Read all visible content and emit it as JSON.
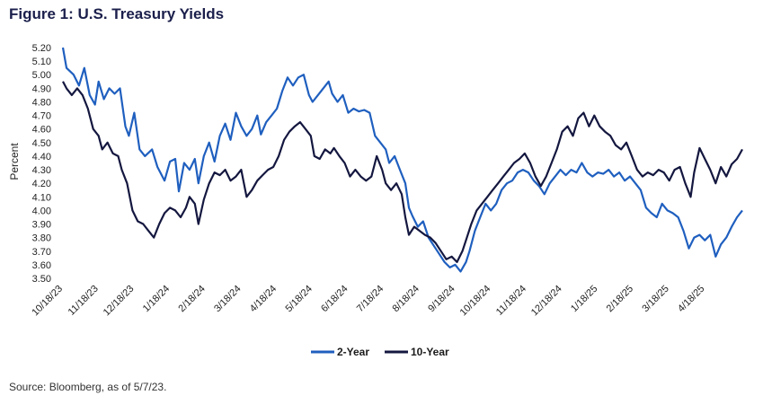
{
  "title": "Figure 1: U.S. Treasury Yields",
  "source": "Source: Bloomberg, as of 5/7/23.",
  "chart_data": {
    "type": "line",
    "ylabel": "Percent",
    "ylim": [
      3.5,
      5.2
    ],
    "yticks": [
      "5.20",
      "5.10",
      "5.00",
      "4.90",
      "4.80",
      "4.70",
      "4.60",
      "4.50",
      "4.40",
      "4.30",
      "4.20",
      "4.10",
      "4.00",
      "3.90",
      "3.80",
      "3.70",
      "3.60",
      "3.50"
    ],
    "xticks": [
      "10/18/23",
      "11/18/23",
      "12/18/23",
      "1/18/24",
      "2/18/24",
      "3/18/24",
      "4/18/24",
      "5/18/24",
      "6/18/24",
      "7/18/24",
      "8/18/24",
      "9/18/24",
      "10/18/24",
      "11/18/24",
      "12/18/24",
      "1/18/25",
      "2/18/25",
      "3/18/25",
      "4/18/25"
    ],
    "x_month_offsets": [
      0,
      1,
      2,
      3,
      4,
      5,
      6,
      7,
      8,
      9,
      10,
      11,
      12,
      13,
      14,
      15,
      16,
      17,
      18
    ],
    "x_end_month": 19.1,
    "legend_position": "bottom",
    "series": [
      {
        "name": "2-Year",
        "color": "#1f5fbf",
        "values": [
          [
            0.0,
            5.2
          ],
          [
            0.1,
            5.05
          ],
          [
            0.3,
            5.0
          ],
          [
            0.45,
            4.92
          ],
          [
            0.6,
            5.05
          ],
          [
            0.75,
            4.85
          ],
          [
            0.9,
            4.78
          ],
          [
            1.0,
            4.95
          ],
          [
            1.15,
            4.82
          ],
          [
            1.3,
            4.9
          ],
          [
            1.45,
            4.86
          ],
          [
            1.6,
            4.9
          ],
          [
            1.75,
            4.62
          ],
          [
            1.85,
            4.55
          ],
          [
            2.0,
            4.72
          ],
          [
            2.15,
            4.45
          ],
          [
            2.3,
            4.4
          ],
          [
            2.5,
            4.45
          ],
          [
            2.65,
            4.32
          ],
          [
            2.85,
            4.22
          ],
          [
            3.0,
            4.36
          ],
          [
            3.15,
            4.38
          ],
          [
            3.25,
            4.14
          ],
          [
            3.4,
            4.35
          ],
          [
            3.55,
            4.3
          ],
          [
            3.7,
            4.38
          ],
          [
            3.8,
            4.2
          ],
          [
            3.95,
            4.4
          ],
          [
            4.1,
            4.5
          ],
          [
            4.25,
            4.36
          ],
          [
            4.4,
            4.55
          ],
          [
            4.55,
            4.64
          ],
          [
            4.7,
            4.52
          ],
          [
            4.85,
            4.72
          ],
          [
            5.0,
            4.62
          ],
          [
            5.15,
            4.55
          ],
          [
            5.3,
            4.6
          ],
          [
            5.45,
            4.7
          ],
          [
            5.55,
            4.56
          ],
          [
            5.7,
            4.65
          ],
          [
            5.85,
            4.7
          ],
          [
            6.0,
            4.75
          ],
          [
            6.15,
            4.88
          ],
          [
            6.3,
            4.98
          ],
          [
            6.45,
            4.92
          ],
          [
            6.6,
            4.98
          ],
          [
            6.75,
            5.0
          ],
          [
            6.9,
            4.85
          ],
          [
            7.0,
            4.8
          ],
          [
            7.15,
            4.85
          ],
          [
            7.3,
            4.9
          ],
          [
            7.45,
            4.95
          ],
          [
            7.55,
            4.86
          ],
          [
            7.7,
            4.8
          ],
          [
            7.85,
            4.85
          ],
          [
            8.0,
            4.72
          ],
          [
            8.15,
            4.75
          ],
          [
            8.3,
            4.73
          ],
          [
            8.45,
            4.74
          ],
          [
            8.6,
            4.72
          ],
          [
            8.75,
            4.55
          ],
          [
            8.9,
            4.5
          ],
          [
            9.05,
            4.45
          ],
          [
            9.15,
            4.35
          ],
          [
            9.3,
            4.4
          ],
          [
            9.45,
            4.3
          ],
          [
            9.6,
            4.2
          ],
          [
            9.7,
            4.02
          ],
          [
            9.8,
            3.96
          ],
          [
            9.95,
            3.88
          ],
          [
            10.1,
            3.92
          ],
          [
            10.25,
            3.8
          ],
          [
            10.4,
            3.74
          ],
          [
            10.55,
            3.68
          ],
          [
            10.7,
            3.62
          ],
          [
            10.85,
            3.58
          ],
          [
            11.0,
            3.6
          ],
          [
            11.15,
            3.55
          ],
          [
            11.3,
            3.62
          ],
          [
            11.4,
            3.7
          ],
          [
            11.55,
            3.85
          ],
          [
            11.7,
            3.95
          ],
          [
            11.85,
            4.05
          ],
          [
            12.0,
            4.0
          ],
          [
            12.15,
            4.05
          ],
          [
            12.3,
            4.15
          ],
          [
            12.45,
            4.2
          ],
          [
            12.6,
            4.22
          ],
          [
            12.75,
            4.28
          ],
          [
            12.9,
            4.3
          ],
          [
            13.05,
            4.28
          ],
          [
            13.2,
            4.22
          ],
          [
            13.35,
            4.18
          ],
          [
            13.5,
            4.12
          ],
          [
            13.65,
            4.2
          ],
          [
            13.8,
            4.25
          ],
          [
            13.95,
            4.3
          ],
          [
            14.1,
            4.26
          ],
          [
            14.25,
            4.3
          ],
          [
            14.4,
            4.28
          ],
          [
            14.55,
            4.35
          ],
          [
            14.7,
            4.28
          ],
          [
            14.85,
            4.25
          ],
          [
            15.0,
            4.28
          ],
          [
            15.15,
            4.27
          ],
          [
            15.3,
            4.3
          ],
          [
            15.45,
            4.25
          ],
          [
            15.6,
            4.28
          ],
          [
            15.75,
            4.22
          ],
          [
            15.9,
            4.25
          ],
          [
            16.05,
            4.2
          ],
          [
            16.2,
            4.15
          ],
          [
            16.35,
            4.02
          ],
          [
            16.5,
            3.98
          ],
          [
            16.65,
            3.95
          ],
          [
            16.8,
            4.05
          ],
          [
            16.95,
            4.0
          ],
          [
            17.1,
            3.98
          ],
          [
            17.25,
            3.95
          ],
          [
            17.4,
            3.85
          ],
          [
            17.55,
            3.72
          ],
          [
            17.7,
            3.8
          ],
          [
            17.85,
            3.82
          ],
          [
            18.0,
            3.78
          ],
          [
            18.15,
            3.82
          ],
          [
            18.3,
            3.66
          ],
          [
            18.45,
            3.75
          ],
          [
            18.6,
            3.8
          ],
          [
            18.75,
            3.88
          ],
          [
            18.9,
            3.95
          ],
          [
            19.05,
            4.0
          ]
        ]
      },
      {
        "name": "10-Year",
        "color": "#14173f",
        "values": [
          [
            0.0,
            4.95
          ],
          [
            0.1,
            4.9
          ],
          [
            0.25,
            4.85
          ],
          [
            0.4,
            4.9
          ],
          [
            0.55,
            4.85
          ],
          [
            0.7,
            4.75
          ],
          [
            0.85,
            4.6
          ],
          [
            1.0,
            4.55
          ],
          [
            1.1,
            4.45
          ],
          [
            1.25,
            4.5
          ],
          [
            1.4,
            4.42
          ],
          [
            1.55,
            4.4
          ],
          [
            1.65,
            4.3
          ],
          [
            1.8,
            4.2
          ],
          [
            1.95,
            4.0
          ],
          [
            2.1,
            3.92
          ],
          [
            2.25,
            3.9
          ],
          [
            2.4,
            3.85
          ],
          [
            2.55,
            3.8
          ],
          [
            2.7,
            3.9
          ],
          [
            2.85,
            3.98
          ],
          [
            3.0,
            4.02
          ],
          [
            3.15,
            4.0
          ],
          [
            3.3,
            3.95
          ],
          [
            3.45,
            4.02
          ],
          [
            3.55,
            4.1
          ],
          [
            3.7,
            4.05
          ],
          [
            3.8,
            3.9
          ],
          [
            3.95,
            4.08
          ],
          [
            4.1,
            4.2
          ],
          [
            4.25,
            4.28
          ],
          [
            4.4,
            4.26
          ],
          [
            4.55,
            4.3
          ],
          [
            4.7,
            4.22
          ],
          [
            4.85,
            4.25
          ],
          [
            5.0,
            4.3
          ],
          [
            5.15,
            4.1
          ],
          [
            5.3,
            4.15
          ],
          [
            5.45,
            4.22
          ],
          [
            5.6,
            4.26
          ],
          [
            5.75,
            4.3
          ],
          [
            5.9,
            4.32
          ],
          [
            6.05,
            4.4
          ],
          [
            6.2,
            4.52
          ],
          [
            6.35,
            4.58
          ],
          [
            6.5,
            4.62
          ],
          [
            6.65,
            4.65
          ],
          [
            6.8,
            4.6
          ],
          [
            6.95,
            4.55
          ],
          [
            7.05,
            4.4
          ],
          [
            7.2,
            4.38
          ],
          [
            7.35,
            4.45
          ],
          [
            7.5,
            4.42
          ],
          [
            7.6,
            4.46
          ],
          [
            7.75,
            4.4
          ],
          [
            7.9,
            4.35
          ],
          [
            8.05,
            4.25
          ],
          [
            8.2,
            4.3
          ],
          [
            8.35,
            4.25
          ],
          [
            8.5,
            4.22
          ],
          [
            8.65,
            4.25
          ],
          [
            8.8,
            4.4
          ],
          [
            8.95,
            4.3
          ],
          [
            9.05,
            4.2
          ],
          [
            9.2,
            4.15
          ],
          [
            9.35,
            4.2
          ],
          [
            9.5,
            4.12
          ],
          [
            9.6,
            3.95
          ],
          [
            9.7,
            3.82
          ],
          [
            9.85,
            3.88
          ],
          [
            10.0,
            3.85
          ],
          [
            10.15,
            3.82
          ],
          [
            10.3,
            3.8
          ],
          [
            10.45,
            3.76
          ],
          [
            10.6,
            3.7
          ],
          [
            10.75,
            3.64
          ],
          [
            10.9,
            3.66
          ],
          [
            11.05,
            3.62
          ],
          [
            11.2,
            3.7
          ],
          [
            11.3,
            3.78
          ],
          [
            11.45,
            3.9
          ],
          [
            11.6,
            4.0
          ],
          [
            11.75,
            4.05
          ],
          [
            11.9,
            4.1
          ],
          [
            12.05,
            4.15
          ],
          [
            12.2,
            4.2
          ],
          [
            12.35,
            4.25
          ],
          [
            12.5,
            4.3
          ],
          [
            12.65,
            4.35
          ],
          [
            12.8,
            4.38
          ],
          [
            12.95,
            4.42
          ],
          [
            13.1,
            4.35
          ],
          [
            13.25,
            4.25
          ],
          [
            13.4,
            4.18
          ],
          [
            13.55,
            4.25
          ],
          [
            13.7,
            4.35
          ],
          [
            13.85,
            4.45
          ],
          [
            14.0,
            4.58
          ],
          [
            14.15,
            4.62
          ],
          [
            14.3,
            4.55
          ],
          [
            14.45,
            4.68
          ],
          [
            14.6,
            4.72
          ],
          [
            14.75,
            4.62
          ],
          [
            14.9,
            4.7
          ],
          [
            15.05,
            4.62
          ],
          [
            15.2,
            4.58
          ],
          [
            15.35,
            4.55
          ],
          [
            15.5,
            4.48
          ],
          [
            15.65,
            4.45
          ],
          [
            15.8,
            4.5
          ],
          [
            15.95,
            4.4
          ],
          [
            16.1,
            4.3
          ],
          [
            16.25,
            4.25
          ],
          [
            16.4,
            4.28
          ],
          [
            16.55,
            4.26
          ],
          [
            16.7,
            4.3
          ],
          [
            16.85,
            4.28
          ],
          [
            17.0,
            4.22
          ],
          [
            17.15,
            4.3
          ],
          [
            17.3,
            4.32
          ],
          [
            17.45,
            4.2
          ],
          [
            17.6,
            4.1
          ],
          [
            17.7,
            4.28
          ],
          [
            17.85,
            4.46
          ],
          [
            18.0,
            4.38
          ],
          [
            18.15,
            4.3
          ],
          [
            18.3,
            4.2
          ],
          [
            18.45,
            4.32
          ],
          [
            18.6,
            4.25
          ],
          [
            18.75,
            4.34
          ],
          [
            18.9,
            4.38
          ],
          [
            19.05,
            4.45
          ]
        ]
      }
    ]
  }
}
